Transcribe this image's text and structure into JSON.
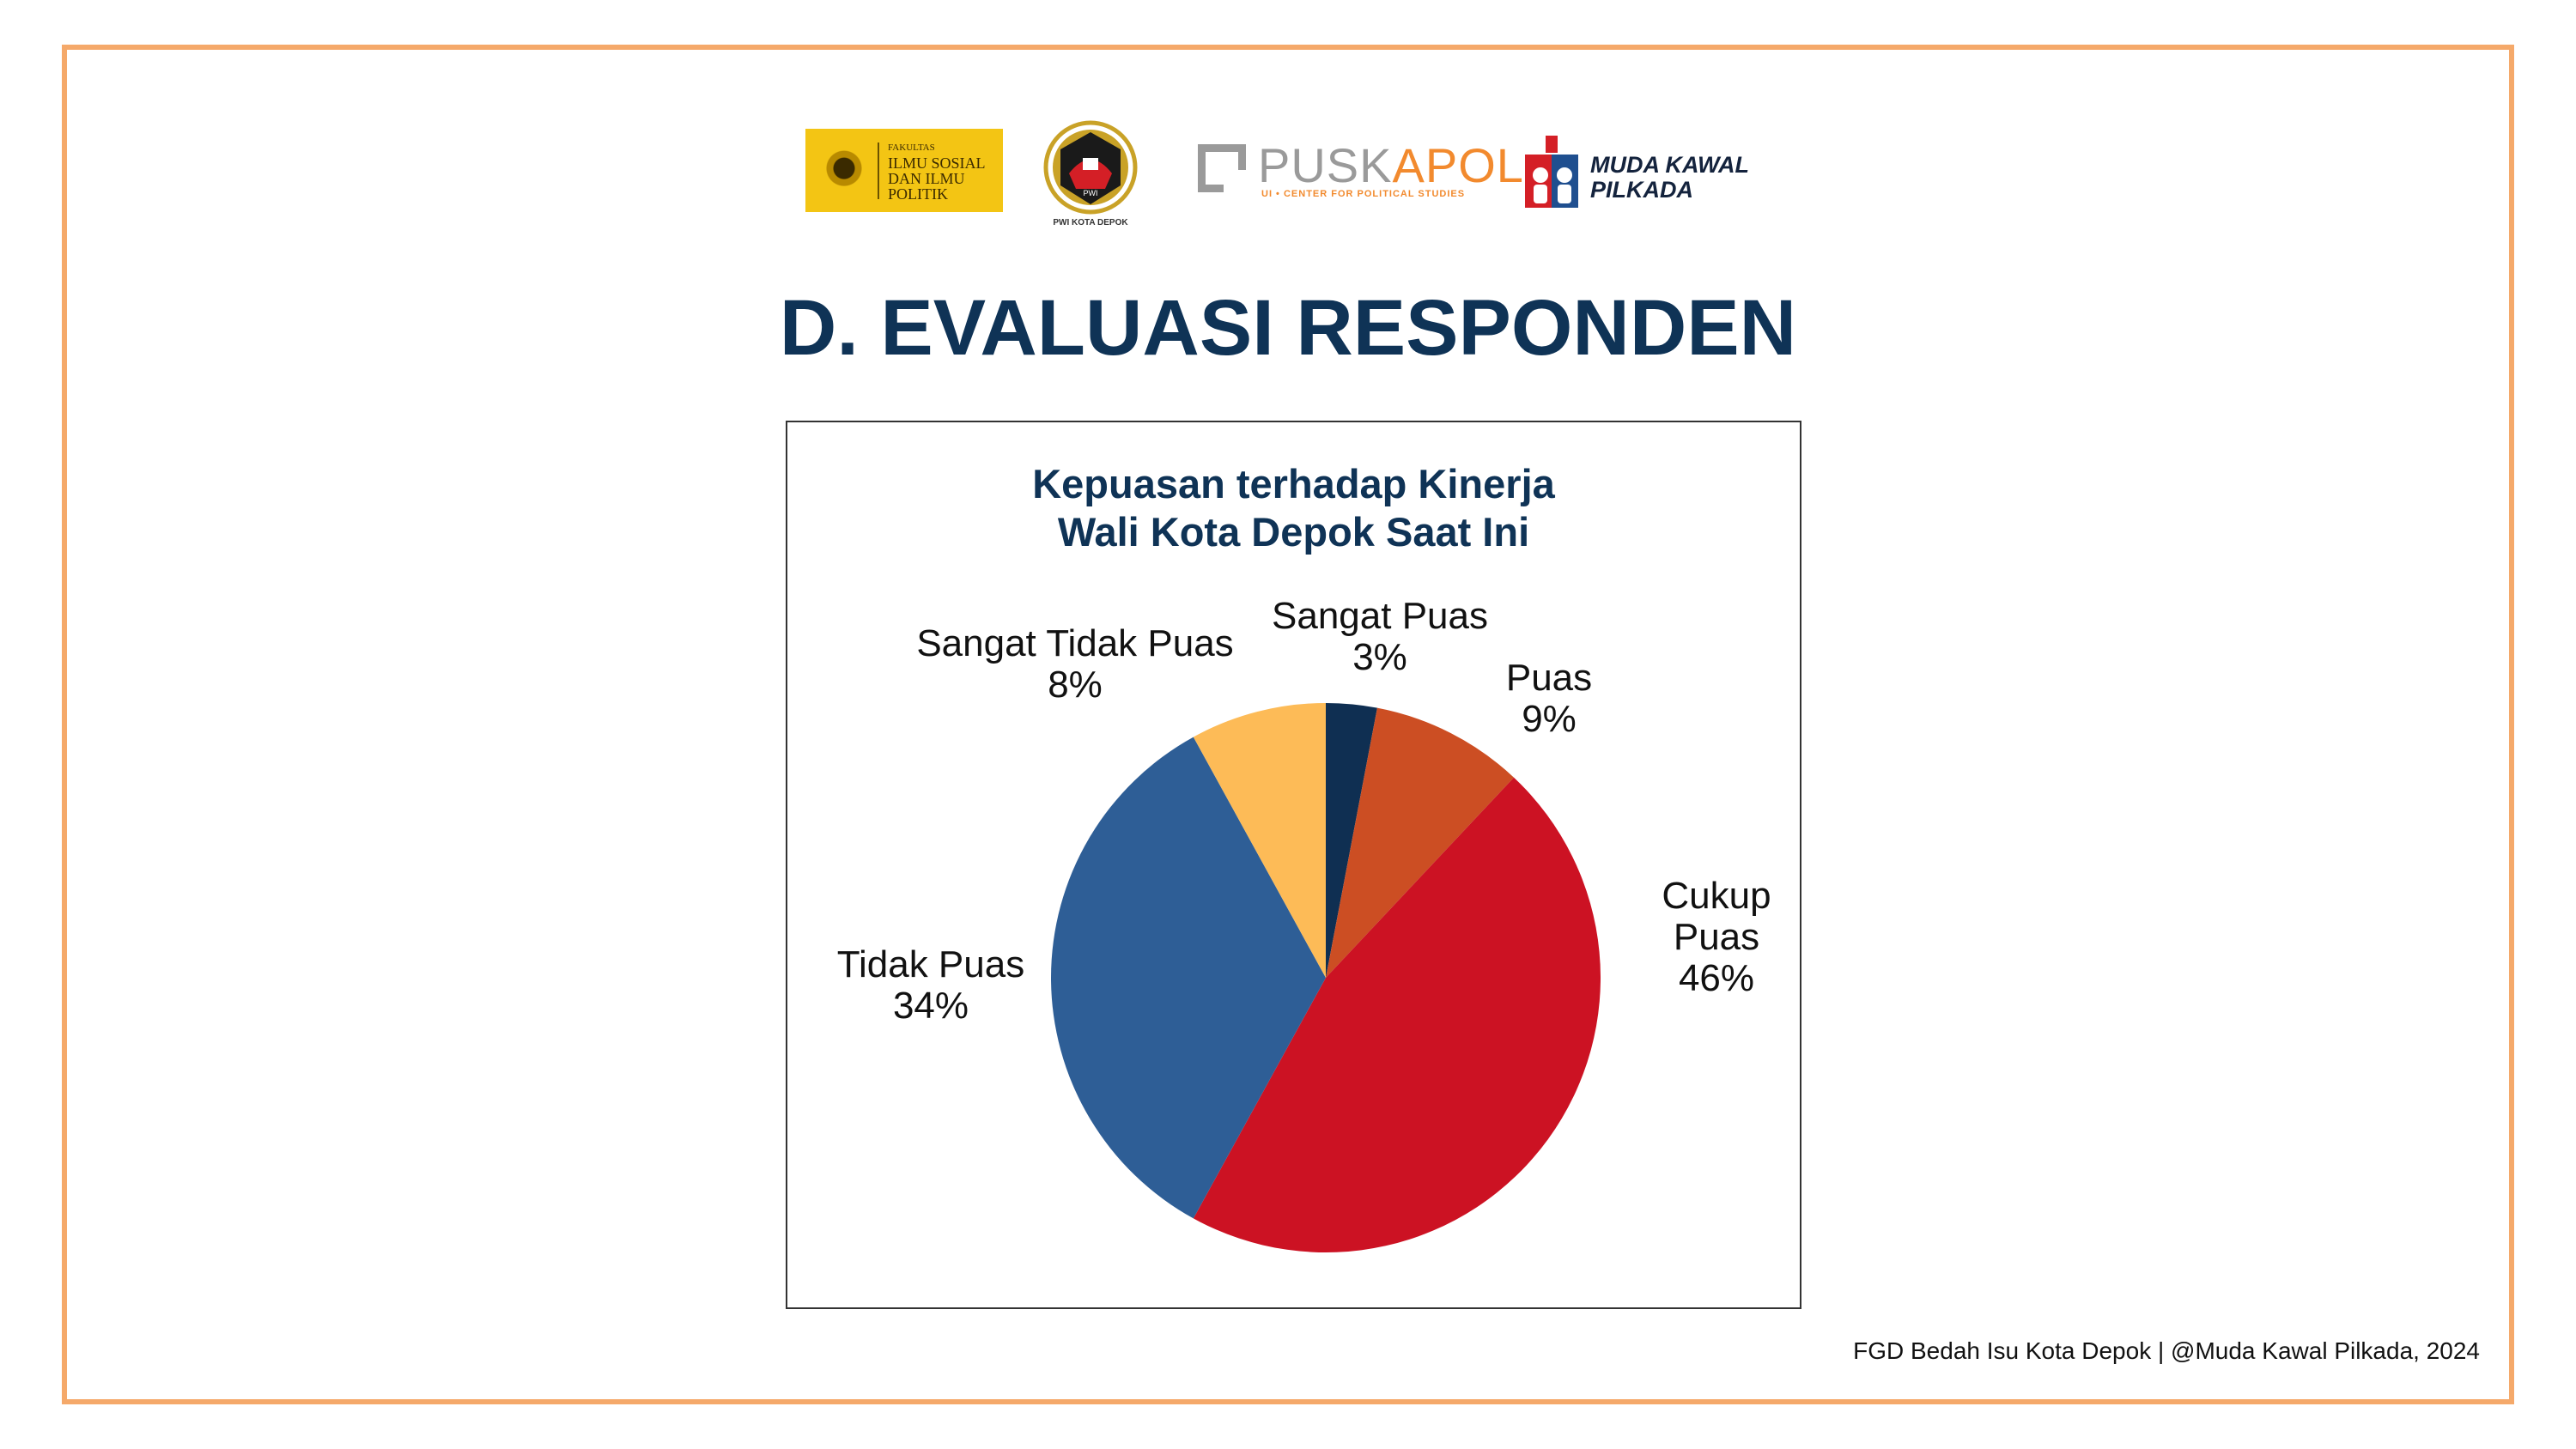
{
  "logos": {
    "fisip": {
      "line1": "FAKULTAS",
      "line2": "ILMU SOSIAL",
      "line3": "DAN ILMU",
      "line4": "POLITIK"
    },
    "pwi": {
      "caption": "PWI KOTA DEPOK"
    },
    "puskapol": {
      "name_prefix": "PUSK",
      "name_suffix": "POL",
      "name_mid": "A",
      "tagline": "UI • CENTER FOR POLITICAL STUDIES"
    },
    "mkp": {
      "line1": "MUDA KAWAL",
      "line2": "PILKADA"
    }
  },
  "page": {
    "title": "D. EVALUASI RESPONDEN",
    "footer": "FGD Bedah Isu Kota Depok | @Muda Kawal Pilkada, 2024"
  },
  "colors": {
    "frame": "#f5a96a",
    "title": "#0f3356"
  },
  "chart_data": {
    "type": "pie",
    "title_line1": "Kepuasan terhadap Kinerja",
    "title_line2": "Wali Kota Depok Saat Ini",
    "slices": [
      {
        "label": "Sangat Puas",
        "value": 3,
        "display": "3%",
        "color": "#0f2f52"
      },
      {
        "label": "Puas",
        "value": 9,
        "display": "9%",
        "color": "#cc4e23"
      },
      {
        "label": "Cukup Puas",
        "value": 46,
        "display": "46%",
        "color": "#cc1223"
      },
      {
        "label": "Tidak Puas",
        "value": 34,
        "display": "34%",
        "color": "#2e5e96"
      },
      {
        "label": "Sangat Tidak Puas",
        "value": 8,
        "display": "8%",
        "color": "#fdbb57"
      }
    ]
  }
}
